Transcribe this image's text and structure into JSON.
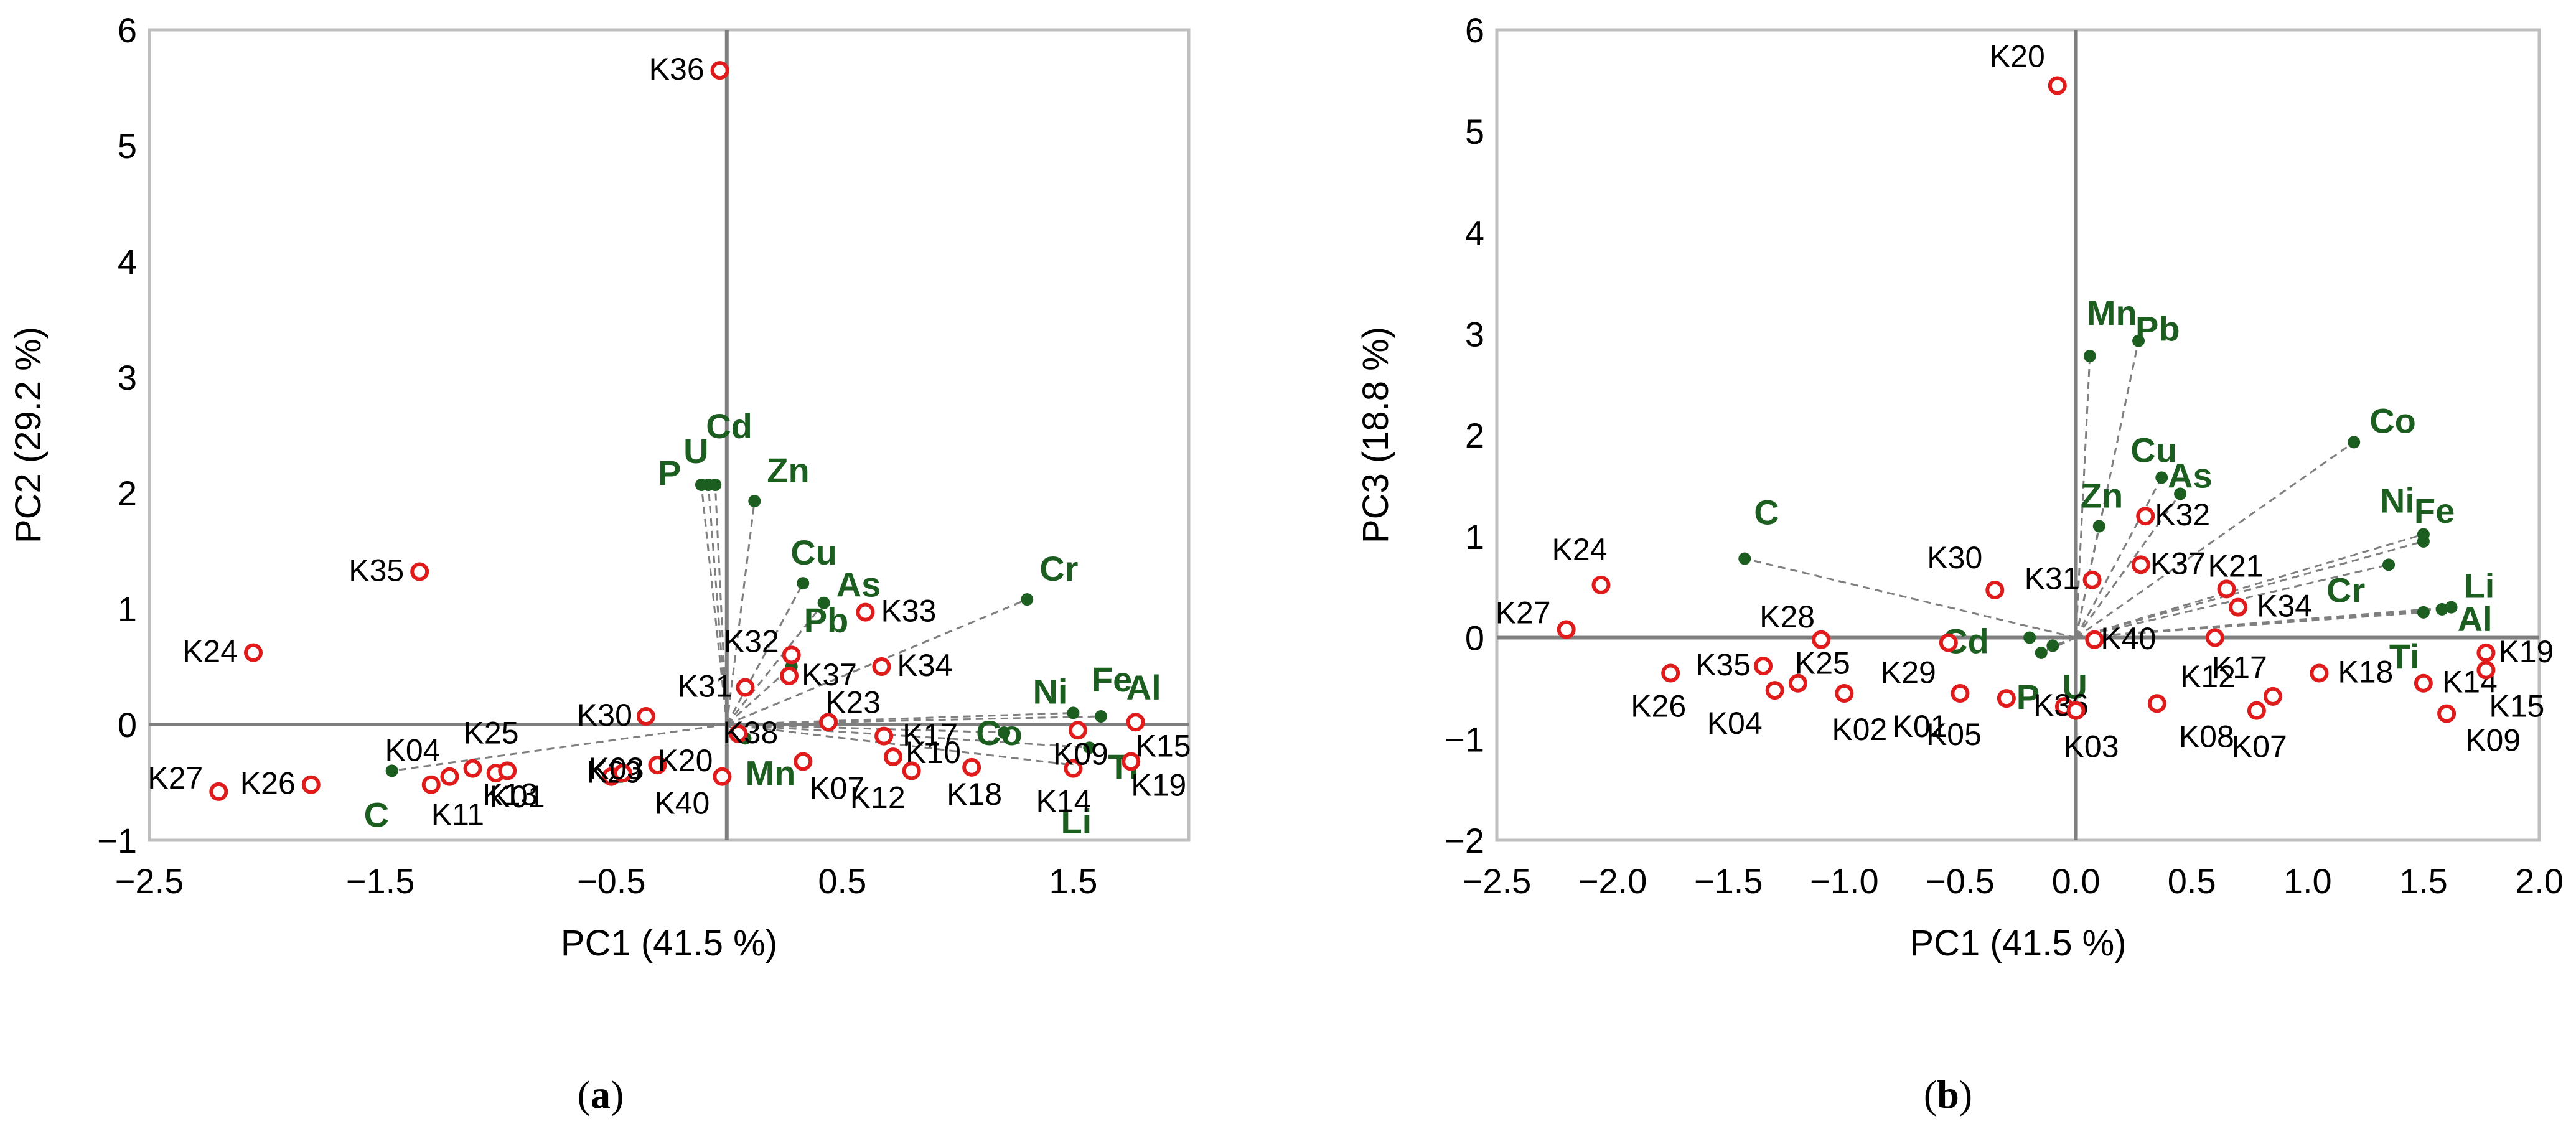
{
  "colors": {
    "observation": "#e01b1b",
    "variable": "#1b5e20",
    "axis": "#7f7f7f",
    "frame": "#bfbfbf",
    "loading_line": "#7f7f7f"
  },
  "chart_data": [
    {
      "type": "scatter",
      "title": "",
      "panel_label": "a",
      "xlabel": "PC1 (41.5 %)",
      "ylabel": "PC2 (29.2 %)",
      "xlim": [
        -2.5,
        2.0
      ],
      "ylim": [
        -1,
        6
      ],
      "xticks": [
        -2.5,
        -1.5,
        -0.5,
        0.5,
        1.5
      ],
      "xtick_labels": [
        "−2.5",
        "−1.5",
        "−0.5",
        "0.5",
        "1.5"
      ],
      "yticks": [
        -1,
        0,
        1,
        2,
        3,
        4,
        5,
        6
      ],
      "ytick_labels": [
        "−1",
        "0",
        "1",
        "2",
        "3",
        "4",
        "5",
        "6"
      ],
      "observations": [
        {
          "label": "K36",
          "x": -0.03,
          "y": 5.65
        },
        {
          "label": "K35",
          "x": -1.33,
          "y": 1.32
        },
        {
          "label": "K24",
          "x": -2.05,
          "y": 0.62
        },
        {
          "label": "K27",
          "x": -2.2,
          "y": -0.58
        },
        {
          "label": "K26",
          "x": -1.8,
          "y": -0.52
        },
        {
          "label": "K04",
          "x": -1.2,
          "y": -0.45
        },
        {
          "label": "K11",
          "x": -1.28,
          "y": -0.52
        },
        {
          "label": "K25",
          "x": -1.1,
          "y": -0.38
        },
        {
          "label": "K01",
          "x": -1.0,
          "y": -0.42
        },
        {
          "label": "K13",
          "x": -0.95,
          "y": -0.4
        },
        {
          "label": "K29",
          "x": -0.5,
          "y": -0.45
        },
        {
          "label": "K03",
          "x": -0.45,
          "y": -0.42
        },
        {
          "label": "K20",
          "x": -0.3,
          "y": -0.35
        },
        {
          "label": "K40",
          "x": -0.02,
          "y": -0.45
        },
        {
          "label": "K30",
          "x": -0.35,
          "y": 0.07
        },
        {
          "label": "K31",
          "x": 0.08,
          "y": 0.32
        },
        {
          "label": "K32",
          "x": 0.28,
          "y": 0.6
        },
        {
          "label": "K37",
          "x": 0.27,
          "y": 0.42
        },
        {
          "label": "K38",
          "x": 0.05,
          "y": -0.08
        },
        {
          "label": "K33",
          "x": 0.6,
          "y": 0.97
        },
        {
          "label": "K34",
          "x": 0.67,
          "y": 0.5
        },
        {
          "label": "K23",
          "x": 0.44,
          "y": 0.02
        },
        {
          "label": "K07",
          "x": 0.33,
          "y": -0.32
        },
        {
          "label": "K17",
          "x": 0.68,
          "y": -0.1
        },
        {
          "label": "K10",
          "x": 0.72,
          "y": -0.28
        },
        {
          "label": "K12",
          "x": 0.8,
          "y": -0.4
        },
        {
          "label": "K18",
          "x": 1.06,
          "y": -0.37
        },
        {
          "label": "K14",
          "x": 1.5,
          "y": -0.38
        },
        {
          "label": "K09",
          "x": 1.52,
          "y": -0.05
        },
        {
          "label": "K15",
          "x": 1.77,
          "y": 0.02
        },
        {
          "label": "K19",
          "x": 1.75,
          "y": -0.32
        }
      ],
      "variables": [
        {
          "label": "Cd",
          "x": -0.05,
          "y": 2.07
        },
        {
          "label": "U",
          "x": -0.08,
          "y": 2.07
        },
        {
          "label": "P",
          "x": -0.11,
          "y": 2.07
        },
        {
          "label": "Zn",
          "x": 0.12,
          "y": 1.93
        },
        {
          "label": "Cu",
          "x": 0.33,
          "y": 1.22
        },
        {
          "label": "As",
          "x": 0.42,
          "y": 1.05
        },
        {
          "label": "Pb",
          "x": 0.28,
          "y": 0.5
        },
        {
          "label": "Cr",
          "x": 1.3,
          "y": 1.08
        },
        {
          "label": "Ni",
          "x": 1.5,
          "y": 0.1
        },
        {
          "label": "Fe",
          "x": 1.62,
          "y": 0.07
        },
        {
          "label": "Al",
          "x": 1.77,
          "y": 0.0
        },
        {
          "label": "Co",
          "x": 1.2,
          "y": -0.07
        },
        {
          "label": "Ti",
          "x": 1.57,
          "y": -0.2
        },
        {
          "label": "Li",
          "x": 1.5,
          "y": -0.35
        },
        {
          "label": "Mn",
          "x": 0.08,
          "y": -0.12
        },
        {
          "label": "C",
          "x": -1.45,
          "y": -0.4
        }
      ]
    },
    {
      "type": "scatter",
      "title": "",
      "panel_label": "b",
      "xlabel": "PC1 (41.5 %)",
      "ylabel": "PC3 (18.8 %)",
      "xlim": [
        -2.5,
        2.0
      ],
      "ylim": [
        -2,
        6
      ],
      "xticks": [
        -2.5,
        -2.0,
        -1.5,
        -1.0,
        -0.5,
        0.0,
        0.5,
        1.0,
        1.5,
        2.0
      ],
      "xtick_labels": [
        "−2.5",
        "−2.0",
        "−1.5",
        "−1.0",
        "−0.5",
        "0.0",
        "0.5",
        "1.0",
        "1.5",
        "2.0"
      ],
      "yticks": [
        -2,
        -1,
        0,
        1,
        2,
        3,
        4,
        5,
        6
      ],
      "ytick_labels": [
        "−2",
        "−1",
        "0",
        "1",
        "2",
        "3",
        "4",
        "5",
        "6"
      ],
      "observations": [
        {
          "label": "K20",
          "x": -0.08,
          "y": 5.45
        },
        {
          "label": "K24",
          "x": -2.05,
          "y": 0.52
        },
        {
          "label": "K27",
          "x": -2.2,
          "y": 0.08
        },
        {
          "label": "K26",
          "x": -1.75,
          "y": -0.35
        },
        {
          "label": "K35",
          "x": -1.35,
          "y": -0.28
        },
        {
          "label": "K04",
          "x": -1.3,
          "y": -0.52
        },
        {
          "label": "K25",
          "x": -1.2,
          "y": -0.45
        },
        {
          "label": "K28",
          "x": -1.1,
          "y": -0.02
        },
        {
          "label": "K02",
          "x": -1.0,
          "y": -0.55
        },
        {
          "label": "K29",
          "x": -0.55,
          "y": -0.05
        },
        {
          "label": "K01",
          "x": -0.5,
          "y": -0.55
        },
        {
          "label": "K05",
          "x": -0.3,
          "y": -0.6
        },
        {
          "label": "K30",
          "x": -0.35,
          "y": 0.47
        },
        {
          "label": "K31",
          "x": 0.07,
          "y": 0.57
        },
        {
          "label": "K36",
          "x": -0.05,
          "y": -0.68
        },
        {
          "label": "K03",
          "x": 0.0,
          "y": -0.72
        },
        {
          "label": "K40",
          "x": 0.08,
          "y": -0.02
        },
        {
          "label": "K32",
          "x": 0.3,
          "y": 1.2
        },
        {
          "label": "K37",
          "x": 0.28,
          "y": 0.72
        },
        {
          "label": "K21",
          "x": 0.65,
          "y": 0.48
        },
        {
          "label": "K34",
          "x": 0.7,
          "y": 0.3
        },
        {
          "label": "K17",
          "x": 0.6,
          "y": 0.0
        },
        {
          "label": "K08",
          "x": 0.35,
          "y": -0.65
        },
        {
          "label": "K12",
          "x": 0.85,
          "y": -0.58
        },
        {
          "label": "K07",
          "x": 0.78,
          "y": -0.72
        },
        {
          "label": "K18",
          "x": 1.05,
          "y": -0.35
        },
        {
          "label": "K14",
          "x": 1.5,
          "y": -0.45
        },
        {
          "label": "K09",
          "x": 1.6,
          "y": -0.75
        },
        {
          "label": "K15",
          "x": 1.77,
          "y": -0.32
        },
        {
          "label": "K19",
          "x": 1.77,
          "y": -0.15
        }
      ],
      "variables": [
        {
          "label": "Mn",
          "x": 0.06,
          "y": 2.78
        },
        {
          "label": "Pb",
          "x": 0.27,
          "y": 2.93
        },
        {
          "label": "Co",
          "x": 1.2,
          "y": 1.93
        },
        {
          "label": "Cu",
          "x": 0.37,
          "y": 1.58
        },
        {
          "label": "As",
          "x": 0.45,
          "y": 1.42
        },
        {
          "label": "Zn",
          "x": 0.1,
          "y": 1.1
        },
        {
          "label": "Ni",
          "x": 1.5,
          "y": 1.02
        },
        {
          "label": "Fe",
          "x": 1.5,
          "y": 0.95
        },
        {
          "label": "Li",
          "x": 1.62,
          "y": 0.3
        },
        {
          "label": "Al",
          "x": 1.58,
          "y": 0.28
        },
        {
          "label": "Cr",
          "x": 1.35,
          "y": 0.72
        },
        {
          "label": "Ti",
          "x": 1.5,
          "y": 0.25
        },
        {
          "label": "C",
          "x": -1.43,
          "y": 0.78
        },
        {
          "label": "Cd",
          "x": -0.2,
          "y": 0.0
        },
        {
          "label": "P",
          "x": -0.15,
          "y": -0.15
        },
        {
          "label": "U",
          "x": -0.1,
          "y": -0.08
        }
      ]
    }
  ]
}
